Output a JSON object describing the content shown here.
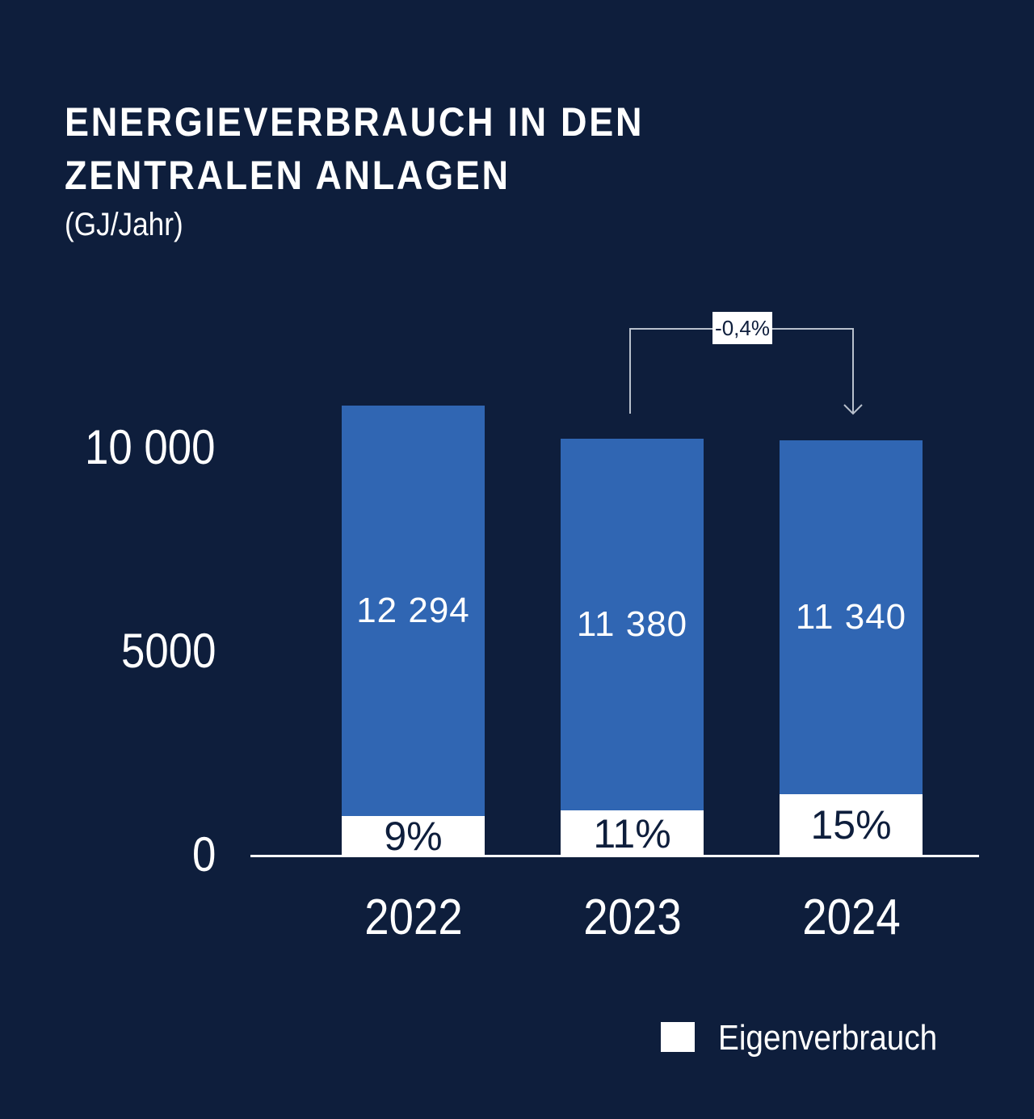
{
  "title_line1": "ENERGIEVERBRAUCH IN DEN",
  "title_line2": "ZENTRALEN ANLAGEN",
  "unit": "(GJ/Jahr)",
  "chart_data": {
    "type": "bar",
    "stacked": true,
    "categories": [
      "2022",
      "2023",
      "2024"
    ],
    "values": [
      12294,
      11380,
      11340
    ],
    "value_labels": [
      "12 294",
      "11 380",
      "11 340"
    ],
    "series": [
      {
        "name": "Eigenverbrauch",
        "percent": [
          9,
          11,
          15
        ],
        "labels": [
          "9%",
          "11%",
          "15%"
        ],
        "color": "#ffffff"
      }
    ],
    "yticks": [
      0,
      5000,
      10000
    ],
    "ytick_labels": [
      "0",
      "5000",
      "10 000"
    ],
    "ylim": [
      0,
      12294
    ],
    "grid": false,
    "annotation": {
      "from": "2023",
      "to": "2024",
      "label": "-0,4%"
    },
    "legend": {
      "entries": [
        "Eigenverbrauch"
      ],
      "position": "bottom-right"
    },
    "colors": {
      "background": "#0e1e3c",
      "bar": "#3066b3",
      "own": "#ffffff"
    }
  }
}
